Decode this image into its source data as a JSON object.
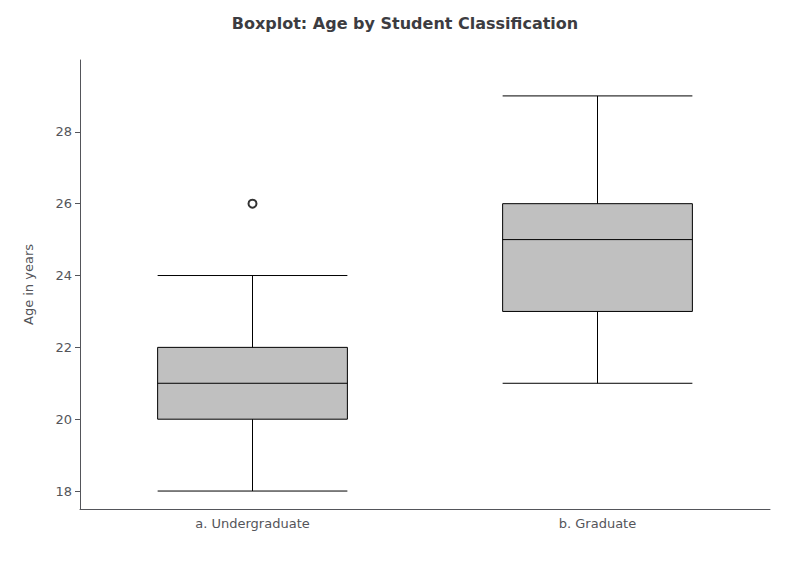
{
  "chart_data": {
    "type": "boxplot",
    "title": "Boxplot: Age by Student Classification",
    "ylabel": "Age in years",
    "categories": [
      "a. Undergraduate",
      "b. Graduate"
    ],
    "boxes": [
      {
        "whisker_low": 18.0,
        "q1": 20.0,
        "median": 21.0,
        "q3": 22.0,
        "whisker_high": 24.0,
        "outliers": [
          26.0
        ]
      },
      {
        "whisker_low": 21.0,
        "q1": 23.0,
        "median": 25.0,
        "q3": 26.0,
        "whisker_high": 29.0,
        "outliers": []
      }
    ],
    "color": "#c0c0c0",
    "ylim": [
      17.5,
      30.0
    ],
    "yticks": [
      18,
      20,
      22,
      24,
      26,
      28
    ],
    "grid": false
  }
}
